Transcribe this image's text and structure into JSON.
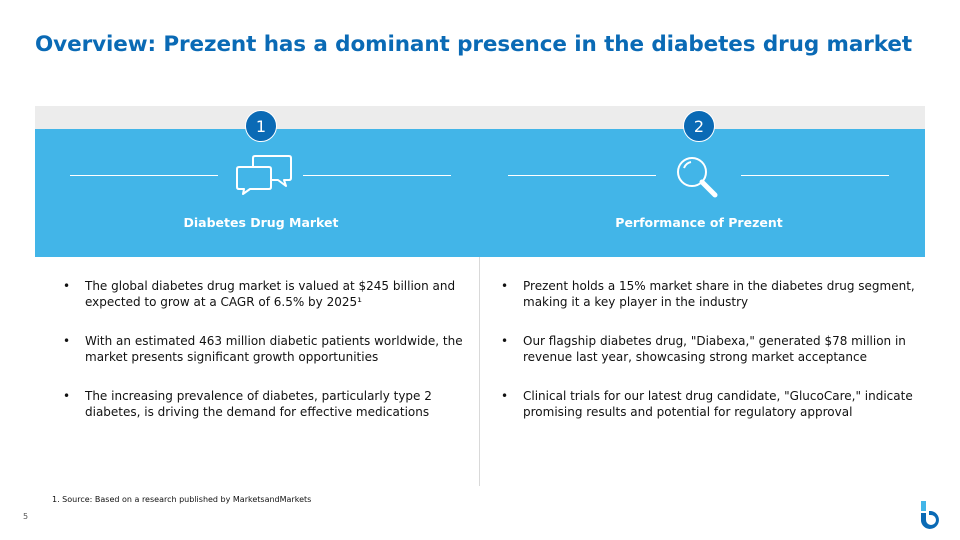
{
  "slide": {
    "title": "Overview: Prezent has a dominant presence in the diabetes drug market",
    "page_number": "5",
    "footnote": "1. Source: Based on a research published by MarketsandMarkets"
  },
  "columns": [
    {
      "number": "1",
      "icon": "chat-bubbles-icon",
      "label": "Diabetes Drug Market",
      "bullets": [
        "The global diabetes drug market is valued at $245 billion and expected to grow at a CAGR of 6.5% by 2025¹",
        "With an estimated 463 million diabetic patients worldwide, the market presents significant growth opportunities",
        "The increasing prevalence of diabetes, particularly type 2 diabetes, is driving the demand for effective medications"
      ]
    },
    {
      "number": "2",
      "icon": "magnifier-icon",
      "label": "Performance of Prezent",
      "bullets": [
        "Prezent holds a 15% market share in the diabetes drug segment, making it a key player in the industry",
        "Our flagship diabetes drug, \"Diabexa,\" generated $78 million in revenue last year, showcasing strong market acceptance",
        "Clinical trials for our latest drug candidate, \"GlucoCare,\" indicate promising results and potential for regulatory approval"
      ]
    }
  ],
  "bullet_char": "•",
  "colors": {
    "title": "#0a6ab5",
    "panel": "#42b5e8",
    "badge": "#0a6ab5",
    "panel_top": "#ececec"
  },
  "logo": "brand-logo-icon"
}
